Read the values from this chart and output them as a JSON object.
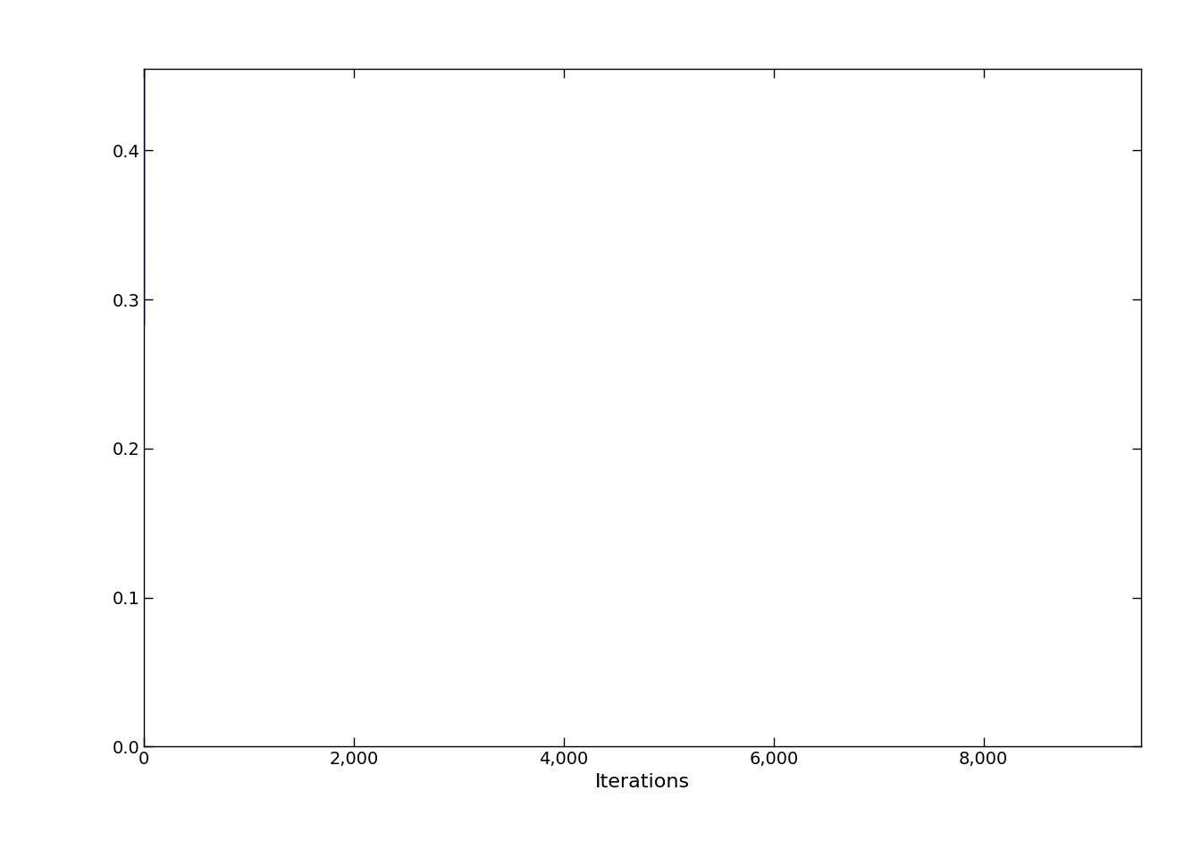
{
  "n_iterations": 9500,
  "black_seed": 42,
  "blue_seed": 99,
  "xlabel": "Iterations",
  "xlim": [
    0,
    9500
  ],
  "ylim": [
    0.0,
    0.455
  ],
  "yticks": [
    0.0,
    0.1,
    0.2,
    0.3,
    0.4
  ],
  "xticks": [
    0,
    2000,
    4000,
    6000,
    8000
  ],
  "black_color": "#000000",
  "blue_color": "#0000EE",
  "line_width": 1.3,
  "background_color": "#FFFFFF",
  "xlabel_fontsize": 16,
  "tick_fontsize": 14,
  "df": 2,
  "defense_alpha": 0.5
}
